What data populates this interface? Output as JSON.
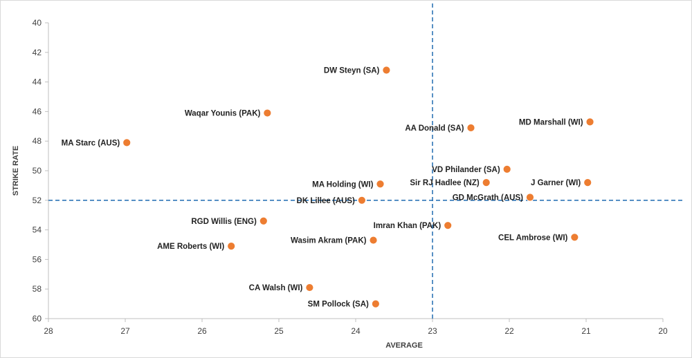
{
  "chart_data": {
    "type": "scatter",
    "xlabel": "AVERAGE",
    "ylabel": "STRIKE RATE",
    "xlim": [
      28,
      20
    ],
    "ylim": [
      60,
      40
    ],
    "x_reversed": true,
    "y_reversed": true,
    "x_ticks": [
      "28",
      "27",
      "26",
      "25",
      "24",
      "23",
      "22",
      "21",
      "20"
    ],
    "y_ticks": [
      "40",
      "42",
      "44",
      "46",
      "48",
      "50",
      "52",
      "54",
      "56",
      "58",
      "60"
    ],
    "reference_lines": {
      "x": 23,
      "y": 52
    },
    "grid": false,
    "marker_color": "#ED7D31",
    "reference_line_color": "#2E75B6",
    "points": [
      {
        "label": "DW Steyn (SA)",
        "x": 23.6,
        "y": 43.2,
        "anchor": "left"
      },
      {
        "label": "Waqar Younis (PAK)",
        "x": 25.15,
        "y": 46.1,
        "anchor": "left"
      },
      {
        "label": "MA Starc (AUS)",
        "x": 26.98,
        "y": 48.1,
        "anchor": "left"
      },
      {
        "label": "AA Donald (SA)",
        "x": 22.5,
        "y": 47.1,
        "anchor": "left"
      },
      {
        "label": "MD Marshall (WI)",
        "x": 20.95,
        "y": 46.7,
        "anchor": "left"
      },
      {
        "label": "VD Philander (SA)",
        "x": 22.03,
        "y": 49.9,
        "anchor": "left"
      },
      {
        "label": "MA Holding (WI)",
        "x": 23.68,
        "y": 50.9,
        "anchor": "left"
      },
      {
        "label": "Sir RJ Hadlee (NZ)",
        "x": 22.3,
        "y": 50.8,
        "anchor": "left"
      },
      {
        "label": "J Garner (WI)",
        "x": 20.98,
        "y": 50.8,
        "anchor": "left"
      },
      {
        "label": "DK Lillee (AUS)",
        "x": 23.92,
        "y": 52.0,
        "anchor": "left"
      },
      {
        "label": "GD McGrath (AUS)",
        "x": 21.73,
        "y": 51.8,
        "anchor": "left"
      },
      {
        "label": "RGD Willis (ENG)",
        "x": 25.2,
        "y": 53.4,
        "anchor": "left"
      },
      {
        "label": "Imran Khan (PAK)",
        "x": 22.8,
        "y": 53.7,
        "anchor": "left"
      },
      {
        "label": "Wasim Akram (PAK)",
        "x": 23.77,
        "y": 54.7,
        "anchor": "left"
      },
      {
        "label": "CEL Ambrose (WI)",
        "x": 21.15,
        "y": 54.5,
        "anchor": "left"
      },
      {
        "label": "AME Roberts (WI)",
        "x": 25.62,
        "y": 55.1,
        "anchor": "left"
      },
      {
        "label": "CA Walsh (WI)",
        "x": 24.6,
        "y": 57.9,
        "anchor": "left"
      },
      {
        "label": "SM Pollock (SA)",
        "x": 23.74,
        "y": 59.0,
        "anchor": "left"
      }
    ]
  }
}
